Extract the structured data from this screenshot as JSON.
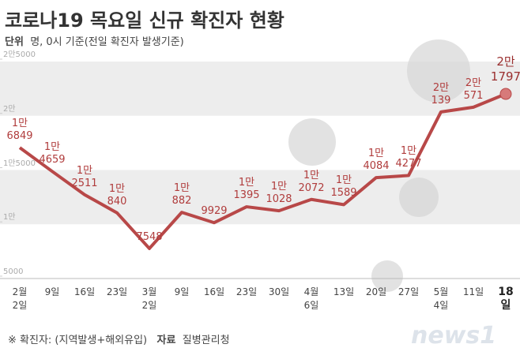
{
  "chart_data": {
    "type": "line",
    "title": "코로나19 목요일 신규 확진자 현황",
    "unit_label": "단위",
    "subtitle": "명, 0시 기준(전일 확진자 발생기준)",
    "categories": [
      "2월\n2일",
      "9일",
      "16일",
      "23일",
      "3월\n2일",
      "9일",
      "16일",
      "23일",
      "30일",
      "4월\n6일",
      "13일",
      "20일",
      "27일",
      "5월\n4일",
      "11일",
      "18일"
    ],
    "series": [
      {
        "color": "#b84848",
        "values": [
          16849,
          14659,
          12511,
          10840,
          7548,
          10882,
          9929,
          11395,
          11028,
          12072,
          11589,
          14084,
          14277,
          20139,
          20571,
          21797
        ],
        "value_labels": [
          "1만\n6849",
          "1만\n4659",
          "1만\n2511",
          "1만\n840",
          "7548",
          "1만\n882",
          "9929",
          "1만\n1395",
          "1만\n1028",
          "1만\n2072",
          "1만\n1589",
          "1만\n4084",
          "1만\n4277",
          "2만\n139",
          "2만\n571",
          "2만\n1797"
        ]
      }
    ],
    "ylim": [
      5000,
      25000
    ],
    "yticks": [
      5000,
      {
        "value": 10000,
        "label": "1만"
      },
      {
        "value": 15000,
        "label": "1만5000"
      },
      {
        "value": 20000,
        "label": "2만"
      },
      {
        "value": 25000,
        "label": "2만5000"
      }
    ],
    "footnote": "※ 확진자: (지역발생+해외유입)",
    "source_label": "자료",
    "source": "질병관리청",
    "logo": "news1"
  }
}
